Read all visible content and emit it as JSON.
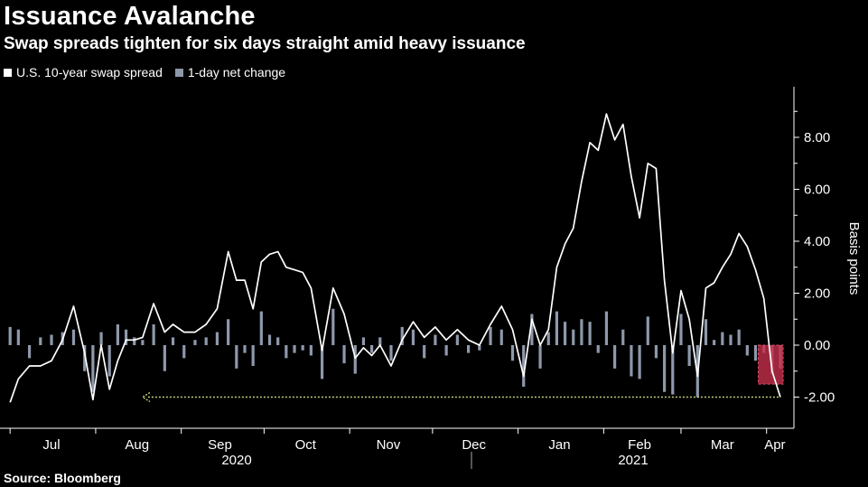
{
  "title": "Issuance Avalanche",
  "subtitle": "Swap spreads tighten for six days straight amid heavy issuance",
  "source": "Source: Bloomberg",
  "colors": {
    "background": "#000000",
    "spread_line": "#ffffff",
    "change_bars": "#8e98ab",
    "highlight_fill": "#c4304b",
    "reference_line": "#c8cf7a"
  },
  "chart_data": {
    "type": "line",
    "title": "Issuance Avalanche",
    "subtitle": "Swap spreads tighten for six days straight amid heavy issuance",
    "ylabel": "Basis points",
    "y_ticks": [
      "-2.00",
      "0.00",
      "2.00",
      "4.00",
      "6.00",
      "8.00"
    ],
    "ylim": [
      -3.0,
      10.0
    ],
    "y_axis_side": "right",
    "grid": false,
    "legend_position": "top-left",
    "x_months": [
      "Jul",
      "Aug",
      "Sep",
      "Oct",
      "Nov",
      "Dec",
      "Jan",
      "Feb",
      "Mar",
      "Apr"
    ],
    "x_years": [
      "2020",
      "2021"
    ],
    "series": [
      {
        "name": "U.S. 10-year swap spread",
        "kind": "line",
        "color": "#ffffff",
        "x": [
          "2020-07-01",
          "2020-07-04",
          "2020-07-08",
          "2020-07-12",
          "2020-07-16",
          "2020-07-20",
          "2020-07-24",
          "2020-07-28",
          "2020-07-31",
          "2020-08-03",
          "2020-08-06",
          "2020-08-09",
          "2020-08-12",
          "2020-08-15",
          "2020-08-18",
          "2020-08-22",
          "2020-08-26",
          "2020-08-29",
          "2020-09-02",
          "2020-09-06",
          "2020-09-10",
          "2020-09-14",
          "2020-09-18",
          "2020-09-21",
          "2020-09-24",
          "2020-09-27",
          "2020-09-30",
          "2020-10-03",
          "2020-10-06",
          "2020-10-09",
          "2020-10-12",
          "2020-10-15",
          "2020-10-18",
          "2020-10-22",
          "2020-10-26",
          "2020-10-30",
          "2020-11-03",
          "2020-11-06",
          "2020-11-09",
          "2020-11-12",
          "2020-11-16",
          "2020-11-20",
          "2020-11-24",
          "2020-11-28",
          "2020-12-02",
          "2020-12-06",
          "2020-12-10",
          "2020-12-14",
          "2020-12-18",
          "2020-12-22",
          "2020-12-26",
          "2020-12-30",
          "2021-01-03",
          "2021-01-06",
          "2021-01-09",
          "2021-01-12",
          "2021-01-15",
          "2021-01-18",
          "2021-01-21",
          "2021-01-24",
          "2021-01-27",
          "2021-01-30",
          "2021-02-02",
          "2021-02-05",
          "2021-02-08",
          "2021-02-11",
          "2021-02-14",
          "2021-02-17",
          "2021-02-20",
          "2021-02-23",
          "2021-02-26",
          "2021-03-01",
          "2021-03-04",
          "2021-03-07",
          "2021-03-10",
          "2021-03-13",
          "2021-03-16",
          "2021-03-19",
          "2021-03-22",
          "2021-03-25",
          "2021-03-28",
          "2021-03-31",
          "2021-04-03",
          "2021-04-06"
        ],
        "values": [
          -2.2,
          -1.3,
          -0.8,
          -0.8,
          -0.6,
          0.2,
          1.5,
          -0.3,
          -2.1,
          0.0,
          -1.7,
          -0.6,
          0.2,
          0.2,
          0.3,
          1.6,
          0.5,
          0.8,
          0.5,
          0.5,
          0.8,
          1.4,
          3.6,
          2.5,
          2.5,
          1.4,
          3.2,
          3.5,
          3.6,
          3.0,
          2.9,
          2.8,
          2.2,
          -0.2,
          2.2,
          1.2,
          -0.5,
          -0.1,
          -0.4,
          0.0,
          -0.8,
          0.2,
          0.9,
          0.3,
          0.7,
          0.2,
          0.6,
          0.2,
          0.0,
          0.8,
          1.5,
          0.6,
          -1.2,
          1.0,
          0.0,
          0.6,
          3.0,
          3.9,
          4.5,
          6.3,
          7.8,
          7.5,
          8.9,
          7.9,
          8.5,
          6.5,
          4.9,
          7.0,
          6.8,
          2.5,
          -0.3,
          2.1,
          1.0,
          -1.2,
          2.2,
          2.4,
          3.0,
          3.5,
          4.3,
          3.8,
          2.9,
          1.8,
          -1.0,
          -2.0
        ]
      },
      {
        "name": "1-day net change",
        "kind": "bar",
        "color": "#8e98ab",
        "x": [
          "2020-07-01",
          "2020-07-04",
          "2020-07-08",
          "2020-07-12",
          "2020-07-16",
          "2020-07-20",
          "2020-07-24",
          "2020-07-28",
          "2020-07-31",
          "2020-08-03",
          "2020-08-06",
          "2020-08-09",
          "2020-08-12",
          "2020-08-15",
          "2020-08-18",
          "2020-08-22",
          "2020-08-26",
          "2020-08-29",
          "2020-09-02",
          "2020-09-06",
          "2020-09-10",
          "2020-09-14",
          "2020-09-18",
          "2020-09-21",
          "2020-09-24",
          "2020-09-27",
          "2020-09-30",
          "2020-10-03",
          "2020-10-06",
          "2020-10-09",
          "2020-10-12",
          "2020-10-15",
          "2020-10-18",
          "2020-10-22",
          "2020-10-26",
          "2020-10-30",
          "2020-11-03",
          "2020-11-06",
          "2020-11-09",
          "2020-11-12",
          "2020-11-16",
          "2020-11-20",
          "2020-11-24",
          "2020-11-28",
          "2020-12-02",
          "2020-12-06",
          "2020-12-10",
          "2020-12-14",
          "2020-12-18",
          "2020-12-22",
          "2020-12-26",
          "2020-12-30",
          "2021-01-03",
          "2021-01-06",
          "2021-01-09",
          "2021-01-12",
          "2021-01-15",
          "2021-01-18",
          "2021-01-21",
          "2021-01-24",
          "2021-01-27",
          "2021-01-30",
          "2021-02-02",
          "2021-02-05",
          "2021-02-08",
          "2021-02-11",
          "2021-02-14",
          "2021-02-17",
          "2021-02-20",
          "2021-02-23",
          "2021-02-26",
          "2021-03-01",
          "2021-03-04",
          "2021-03-07",
          "2021-03-10",
          "2021-03-13",
          "2021-03-16",
          "2021-03-19",
          "2021-03-22",
          "2021-03-25",
          "2021-03-28",
          "2021-03-31",
          "2021-04-03",
          "2021-04-06"
        ],
        "values": [
          0.7,
          0.6,
          -0.5,
          0.3,
          0.4,
          0.5,
          0.6,
          -1.0,
          -1.8,
          0.5,
          -1.2,
          0.8,
          0.6,
          0.3,
          0.2,
          0.8,
          -1.0,
          0.3,
          -0.5,
          0.2,
          0.3,
          0.5,
          1.0,
          -0.9,
          -0.3,
          -0.8,
          1.3,
          0.4,
          0.3,
          -0.5,
          -0.3,
          -0.2,
          -0.4,
          -1.3,
          1.4,
          -0.7,
          -1.1,
          0.3,
          -0.3,
          0.3,
          -0.6,
          0.7,
          0.6,
          -0.5,
          0.4,
          -0.4,
          0.4,
          -0.3,
          -0.2,
          0.7,
          0.6,
          -0.6,
          -1.6,
          1.2,
          -0.9,
          0.5,
          1.3,
          0.9,
          0.6,
          1.0,
          0.9,
          -0.3,
          1.3,
          -0.9,
          0.6,
          -1.2,
          -1.3,
          1.1,
          -0.5,
          -1.8,
          -1.9,
          1.2,
          -0.8,
          -2.0,
          1.0,
          0.2,
          0.5,
          0.4,
          0.6,
          -0.4,
          -0.6,
          -0.3,
          -1.1,
          -0.9
        ]
      }
    ],
    "annotations": [
      {
        "kind": "reference_line",
        "value": -2.0,
        "from": "2020-08-18",
        "to": "2021-04-06",
        "style": "dotted"
      },
      {
        "kind": "highlight_box",
        "from": "2021-03-29",
        "to": "2021-04-07",
        "y_range": [
          -1.5,
          0.0
        ]
      }
    ]
  }
}
